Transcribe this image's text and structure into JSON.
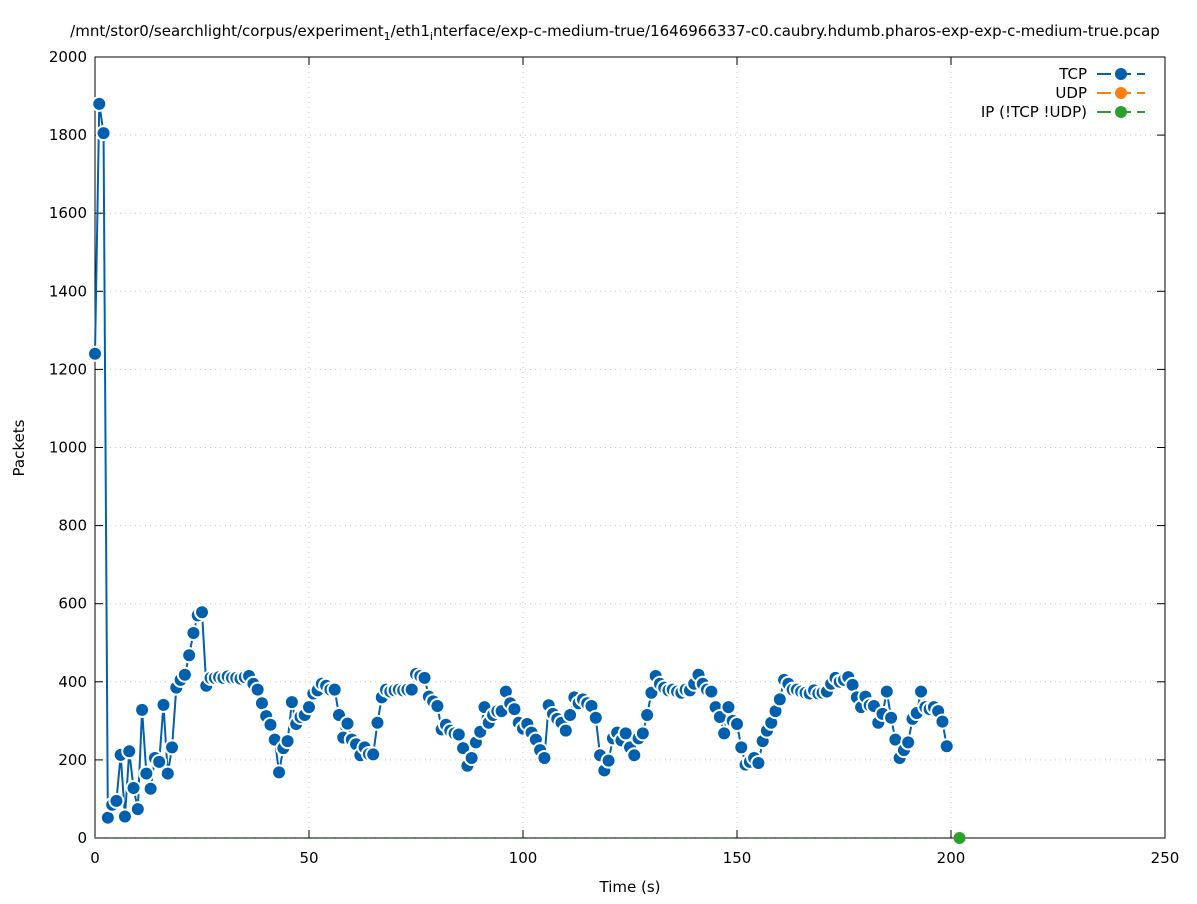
{
  "chart_data": {
    "type": "line",
    "title": "/mnt/stor0/searchlight/corpus/experiment_1/eth1_interface/exp-c-medium-true/1646966337-c0.caubry.hdumb.pharos-exp-exp-c-medium-true.pcap",
    "xlabel": "Time (s)",
    "ylabel": "Packets",
    "xlim": [
      0,
      250
    ],
    "ylim": [
      0,
      2000
    ],
    "xticks": [
      0,
      50,
      100,
      150,
      200,
      250
    ],
    "yticks": [
      0,
      200,
      400,
      600,
      800,
      1000,
      1200,
      1400,
      1600,
      1800,
      2000
    ],
    "grid": true,
    "legend_position": "top-right",
    "series": [
      {
        "name": "TCP",
        "color": "#0060ad",
        "x_start": 0,
        "values": [
          1240,
          1880,
          1805,
          52,
          85,
          95,
          213,
          55,
          222,
          128,
          74,
          328,
          165,
          126,
          205,
          195,
          341,
          165,
          232,
          385,
          405,
          418,
          468,
          525,
          570,
          578,
          390,
          410,
          410,
          412,
          410,
          414,
          410,
          410,
          408,
          412,
          415,
          395,
          380,
          345,
          312,
          290,
          252,
          168,
          230,
          248,
          348,
          292,
          310,
          315,
          335,
          370,
          378,
          395,
          390,
          380,
          380,
          315,
          257,
          293,
          252,
          240,
          212,
          232,
          215,
          214,
          295,
          360,
          380,
          375,
          378,
          380,
          378,
          380,
          380,
          420,
          415,
          410,
          362,
          350,
          338,
          278,
          290,
          275,
          268,
          265,
          230,
          185,
          205,
          245,
          272,
          335,
          295,
          315,
          325,
          325,
          375,
          345,
          330,
          295,
          280,
          292,
          270,
          252,
          225,
          205,
          340,
          318,
          305,
          295,
          275,
          315,
          360,
          345,
          355,
          345,
          338,
          308,
          212,
          173,
          198,
          255,
          270,
          250,
          268,
          232,
          212,
          255,
          268,
          315,
          372,
          415,
          395,
          385,
          378,
          380,
          375,
          372,
          380,
          378,
          395,
          418,
          395,
          380,
          375,
          335,
          310,
          268,
          335,
          300,
          292,
          232,
          188,
          195,
          205,
          192,
          248,
          275,
          295,
          325,
          355,
          405,
          395,
          380,
          380,
          375,
          372,
          370,
          378,
          370,
          372,
          375,
          395,
          410,
          400,
          405,
          412,
          392,
          360,
          335,
          362,
          340,
          338,
          295,
          318,
          375,
          308,
          252,
          205,
          225,
          245,
          305,
          320,
          375,
          335,
          330,
          335,
          325,
          298,
          235
        ]
      },
      {
        "name": "UDP",
        "color": "#ff7f0e",
        "values": []
      },
      {
        "name": "IP (!TCP  !UDP)",
        "color": "#2ca02c",
        "x": [
          202
        ],
        "values": [
          0
        ]
      }
    ]
  }
}
